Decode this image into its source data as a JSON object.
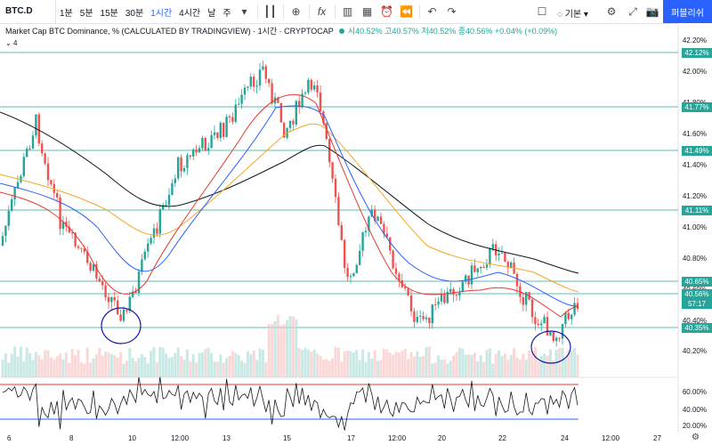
{
  "toolbar": {
    "symbol": "BTC.D",
    "timeframes": [
      "1분",
      "5분",
      "15분",
      "30분",
      "1시간",
      "4시간",
      "날",
      "주"
    ],
    "active_timeframe": "1시간",
    "layout_label": "기본",
    "publish_label": "퍼블리쉬"
  },
  "legend": {
    "title": "Market Cap BTC Dominance, % (CALCULATED BY TRADINGVIEW) · 1시간 · CRYPTOCAP",
    "ohlc": "시40.52% 고40.57% 저40.52% 종40.56% +0.04% (+0.09%)",
    "indicator_count": "4"
  },
  "price_axis": {
    "ticks": [
      "42.20%",
      "42.00%",
      "41.80%",
      "41.60%",
      "41.40%",
      "41.20%",
      "41.00%",
      "40.80%",
      "40.60%",
      "40.40%",
      "40.20%"
    ],
    "tags": [
      {
        "label": "42.12%",
        "color": "#26a69a"
      },
      {
        "label": "41.77%",
        "color": "#26a69a"
      },
      {
        "label": "41.49%",
        "color": "#26a69a"
      },
      {
        "label": "41.11%",
        "color": "#26a69a"
      },
      {
        "label": "40.65%",
        "color": "#26a69a"
      },
      {
        "label": "40.56%",
        "color": "#26a69a"
      },
      {
        "label": "57:17",
        "color": "#26a69a"
      },
      {
        "label": "40.35%",
        "color": "#26a69a"
      }
    ]
  },
  "rsi_axis": {
    "ticks": [
      "60.00%",
      "40.00%",
      "20.00%"
    ]
  },
  "time_axis": {
    "labels": [
      "6",
      "8",
      "10",
      "12:00",
      "13",
      "15",
      "17",
      "12:00",
      "20",
      "22",
      "24",
      "12:00",
      "27"
    ]
  }
}
